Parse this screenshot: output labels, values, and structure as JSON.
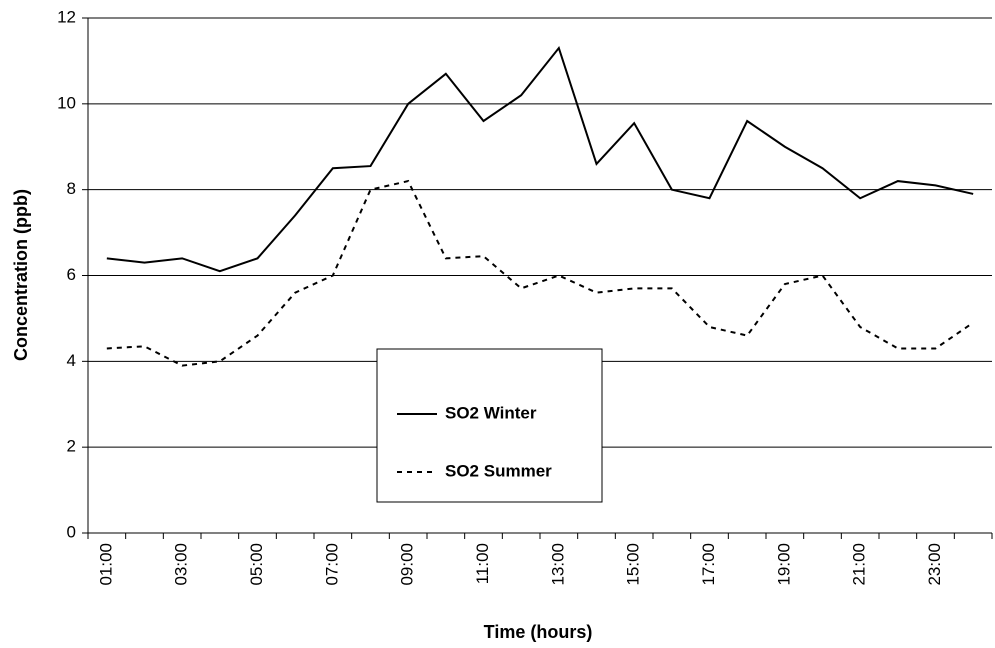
{
  "chart_data": {
    "type": "line",
    "xlabel": "Time (hours)",
    "ylabel": "Concentration (ppb)",
    "categories": [
      "01:00",
      null,
      "03:00",
      null,
      "05:00",
      null,
      "07:00",
      null,
      "09:00",
      null,
      "11:00",
      null,
      "13:00",
      null,
      "15:00",
      null,
      "17:00",
      null,
      "19:00",
      null,
      "21:00",
      null,
      "23:00",
      null
    ],
    "series": [
      {
        "name": "SO2 Winter",
        "color": "#000000",
        "line_style": "solid",
        "values": [
          6.4,
          6.3,
          6.4,
          6.1,
          6.4,
          7.4,
          8.5,
          8.55,
          10.0,
          10.7,
          9.6,
          10.2,
          11.3,
          8.6,
          9.55,
          8.0,
          7.8,
          9.6,
          9.0,
          8.5,
          7.8,
          8.2,
          8.1,
          7.9
        ]
      },
      {
        "name": "SO2 Summer",
        "color": "#000000",
        "line_style": "dashed",
        "values": [
          4.3,
          4.35,
          3.9,
          4.0,
          4.6,
          5.6,
          6.0,
          8.0,
          8.2,
          6.4,
          6.45,
          5.7,
          6.0,
          5.6,
          5.7,
          5.7,
          4.8,
          4.6,
          5.8,
          6.0,
          4.8,
          4.3,
          4.3,
          4.9
        ]
      }
    ],
    "ylim": [
      0,
      12
    ],
    "yticks": [
      0,
      2,
      4,
      6,
      8,
      10,
      12
    ],
    "grid": true
  }
}
